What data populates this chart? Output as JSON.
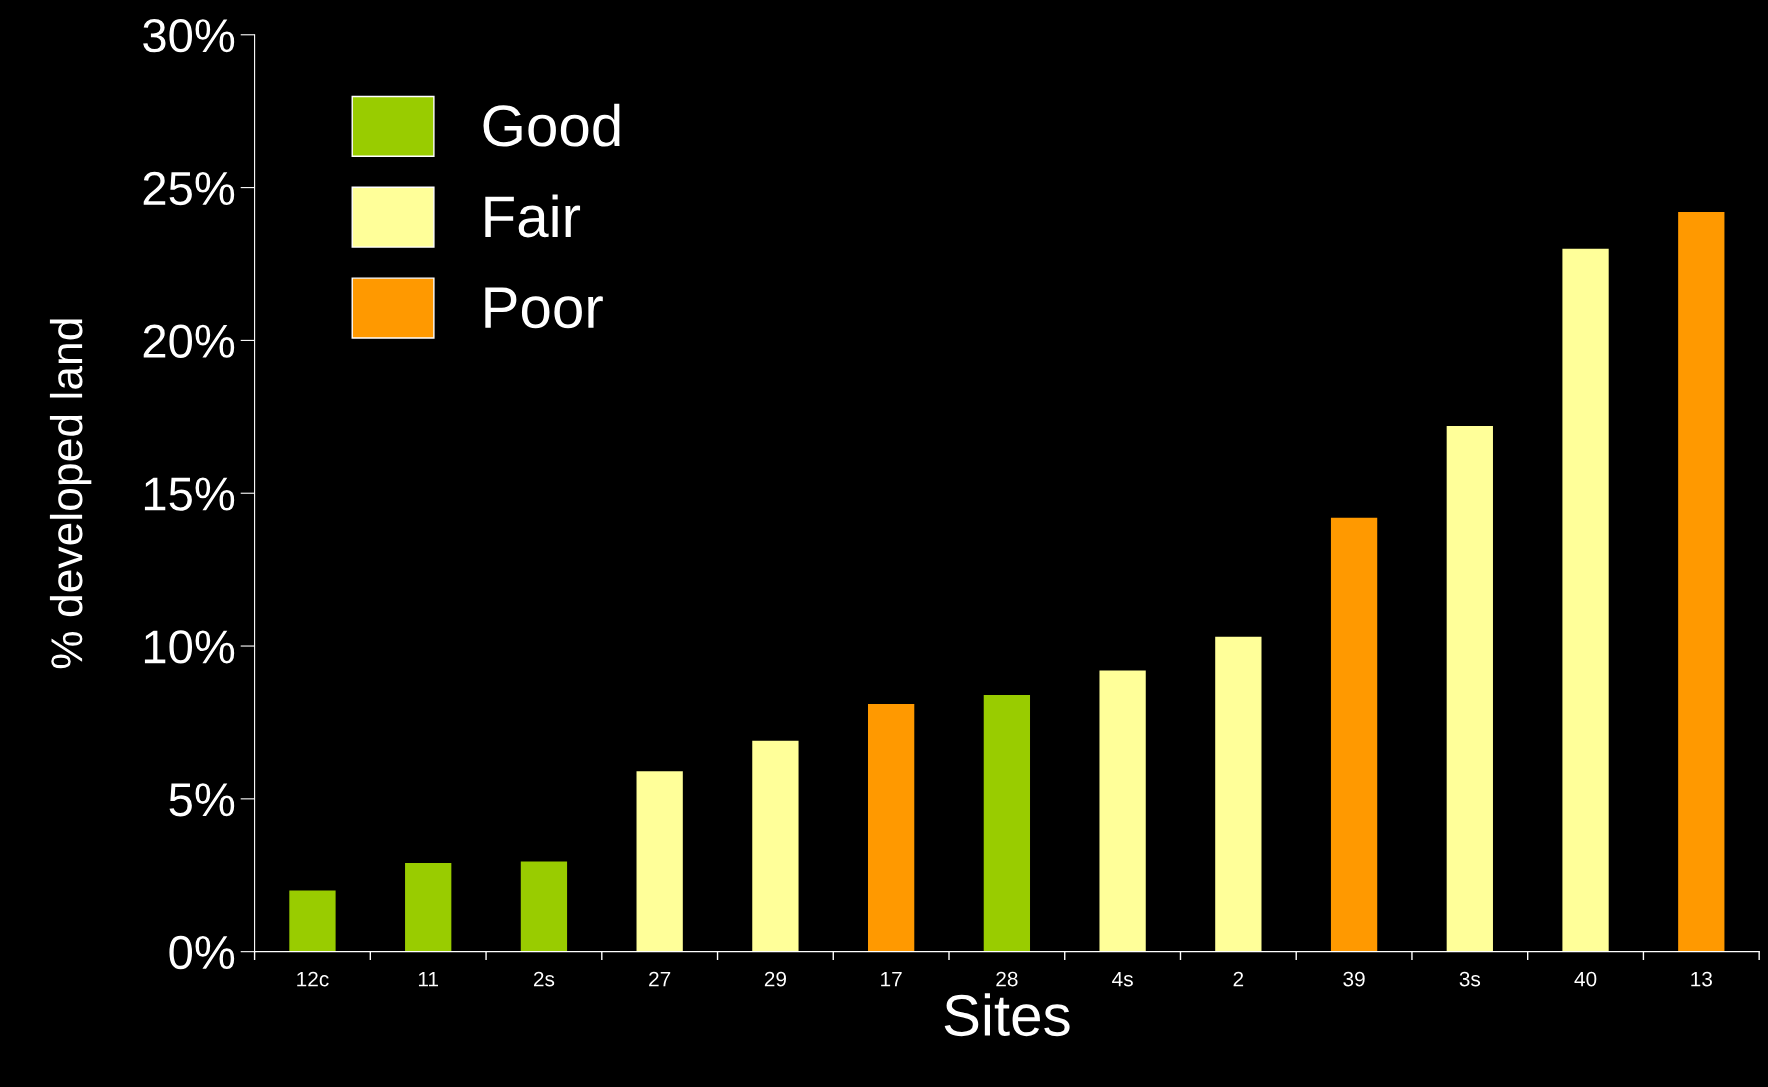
{
  "chart_data": {
    "type": "bar",
    "xlabel": "Sites",
    "ylabel": "% developed land",
    "categories": [
      "12c",
      "11",
      "2s",
      "27",
      "29",
      "17",
      "28",
      "4s",
      "2",
      "39",
      "3s",
      "40",
      "13"
    ],
    "series": [
      {
        "name": "Good",
        "color": "#99cc00",
        "values": [
          2.0,
          2.9,
          2.95,
          null,
          null,
          null,
          8.4,
          null,
          null,
          null,
          null,
          null,
          null
        ]
      },
      {
        "name": "Fair",
        "color": "#ffff99",
        "values": [
          null,
          null,
          null,
          5.9,
          6.9,
          null,
          null,
          9.2,
          10.3,
          null,
          17.2,
          23.0,
          null
        ]
      },
      {
        "name": "Poor",
        "color": "#ff9900",
        "values": [
          null,
          null,
          null,
          null,
          null,
          8.1,
          null,
          null,
          null,
          14.2,
          null,
          null,
          24.2
        ]
      }
    ],
    "ylim": [
      0,
      30
    ],
    "yticks": [
      {
        "value": 0,
        "label": "0%"
      },
      {
        "value": 5,
        "label": "5%"
      },
      {
        "value": 10,
        "label": "10%"
      },
      {
        "value": 15,
        "label": "15%"
      },
      {
        "value": 20,
        "label": "20%"
      },
      {
        "value": 25,
        "label": "25%"
      },
      {
        "value": 30,
        "label": "30%"
      }
    ],
    "grid": false,
    "legend": "top left"
  }
}
